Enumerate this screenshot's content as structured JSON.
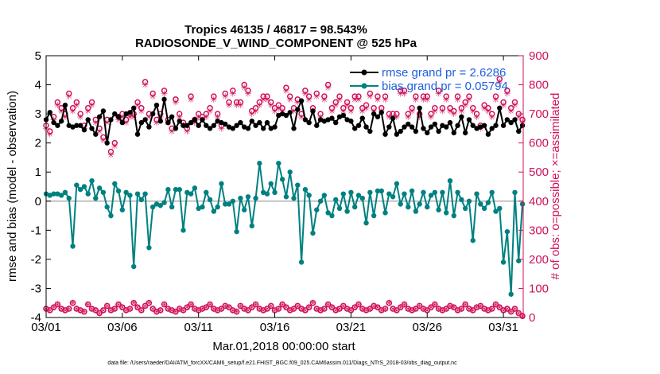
{
  "colors": {
    "rmse": "#000000",
    "bias": "#008080",
    "count": "#d0105a",
    "legend_text": "#1f5fe0",
    "zero": "#b0b0b0",
    "axis": "#000000"
  },
  "footer": "data file: /Users/raeder/DAI/ATM_forcXX/CAM6_setup/f.e21.FHIST_BGC.f09_025.CAM6assim.011/Diags_NTrS_2018-03/obs_diag_output.nc",
  "chart_data": {
    "type": "line",
    "title": "Tropics 46135 / 46817 = 98.543%",
    "subtitle": "RADIOSONDE_V_WIND_COMPONENT @ 525 hPa",
    "xlabel": "Mar.01,2018 00:00:00 start",
    "ylabel": "rmse and bias (model - observation)",
    "y2label": "# of obs: o=possible; ×=assimilated",
    "xlim": [
      0,
      31.3
    ],
    "ylim": [
      -4,
      5
    ],
    "y2lim": [
      0,
      900
    ],
    "x_ticks": [
      0,
      5,
      10,
      15,
      20,
      25,
      30
    ],
    "x_tick_labels": [
      "03/01",
      "03/06",
      "03/11",
      "03/16",
      "03/21",
      "03/26",
      "03/31"
    ],
    "y_ticks": [
      -4,
      -3,
      -2,
      -1,
      0,
      1,
      2,
      3,
      4,
      5
    ],
    "y_tick_labels": [
      "-4",
      "-3",
      "-2",
      "-1",
      "0",
      "1",
      "2",
      "3",
      "4",
      "5"
    ],
    "y2_ticks": [
      0,
      100,
      200,
      300,
      400,
      500,
      600,
      700,
      800,
      900
    ],
    "y2_tick_labels": [
      "0",
      "100",
      "200",
      "300",
      "400",
      "500",
      "600",
      "700",
      "800",
      "900"
    ],
    "legend": [
      "rmse grand pr = 2.6286",
      "bias grand pr = 0.05794"
    ],
    "legend_position": "top-right",
    "x": [
      0.0,
      0.25,
      0.5,
      0.75,
      1.0,
      1.25,
      1.5,
      1.75,
      2.0,
      2.25,
      2.5,
      2.75,
      3.0,
      3.25,
      3.5,
      3.75,
      4.0,
      4.25,
      4.5,
      4.75,
      5.0,
      5.25,
      5.5,
      5.75,
      6.0,
      6.25,
      6.5,
      6.75,
      7.0,
      7.25,
      7.5,
      7.75,
      8.0,
      8.25,
      8.5,
      8.75,
      9.0,
      9.25,
      9.5,
      9.75,
      10.0,
      10.25,
      10.5,
      10.75,
      11.0,
      11.25,
      11.5,
      11.75,
      12.0,
      12.25,
      12.5,
      12.75,
      13.0,
      13.25,
      13.5,
      13.75,
      14.0,
      14.25,
      14.5,
      14.75,
      15.0,
      15.25,
      15.5,
      15.75,
      16.0,
      16.25,
      16.5,
      16.75,
      17.0,
      17.25,
      17.5,
      17.75,
      18.0,
      18.25,
      18.5,
      18.75,
      19.0,
      19.25,
      19.5,
      19.75,
      20.0,
      20.25,
      20.5,
      20.75,
      21.0,
      21.25,
      21.5,
      21.75,
      22.0,
      22.25,
      22.5,
      22.75,
      23.0,
      23.25,
      23.5,
      23.75,
      24.0,
      24.25,
      24.5,
      24.75,
      25.0,
      25.25,
      25.5,
      25.75,
      26.0,
      26.25,
      26.5,
      26.75,
      27.0,
      27.25,
      27.5,
      27.75,
      28.0,
      28.25,
      28.5,
      28.75,
      29.0,
      29.25,
      29.5,
      29.75,
      30.0,
      30.25,
      30.5,
      30.75,
      31.0,
      31.25
    ],
    "series": [
      {
        "name": "rmse",
        "values": [
          2.8,
          3.05,
          2.7,
          2.6,
          2.75,
          3.3,
          2.6,
          2.55,
          2.6,
          2.6,
          2.45,
          2.8,
          2.5,
          2.3,
          2.9,
          3.1,
          2.0,
          2.8,
          3.0,
          2.9,
          2.7,
          3.0,
          3.05,
          3.2,
          2.3,
          2.7,
          2.8,
          2.55,
          3.0,
          3.3,
          2.75,
          3.5,
          2.7,
          2.9,
          2.5,
          2.75,
          2.6,
          2.6,
          2.7,
          2.8,
          2.6,
          2.8,
          2.6,
          2.5,
          2.6,
          2.75,
          2.7,
          2.65,
          2.55,
          2.5,
          2.6,
          2.7,
          2.55,
          2.5,
          2.75,
          2.6,
          2.7,
          2.5,
          2.7,
          2.5,
          2.55,
          2.95,
          3.0,
          2.95,
          3.05,
          2.5,
          3.15,
          3.45,
          2.8,
          2.7,
          3.1,
          2.6,
          2.8,
          2.75,
          2.8,
          2.85,
          2.7,
          2.9,
          2.95,
          2.8,
          2.75,
          2.5,
          2.6,
          2.85,
          2.55,
          2.4,
          3.0,
          2.9,
          3.05,
          2.3,
          2.55,
          2.85,
          2.3,
          2.4,
          2.55,
          2.65,
          2.55,
          2.4,
          3.2,
          2.5,
          2.35,
          2.55,
          2.65,
          2.4,
          2.6,
          2.55,
          2.7,
          2.35,
          2.6,
          2.9,
          2.35,
          2.8,
          2.6,
          2.5,
          2.55,
          2.6,
          2.3,
          2.5,
          2.6,
          3.2,
          2.6,
          2.8,
          2.7,
          2.8,
          2.4,
          2.6
        ]
      },
      {
        "name": "bias",
        "values": [
          0.25,
          0.2,
          0.25,
          0.25,
          0.2,
          0.3,
          0.1,
          -1.55,
          0.55,
          0.4,
          0.5,
          0.25,
          0.7,
          0.1,
          0.45,
          0.3,
          -0.2,
          -0.5,
          0.6,
          0.35,
          -0.3,
          0.3,
          0.2,
          -2.25,
          0.25,
          0.05,
          0.25,
          -1.6,
          -0.2,
          -0.1,
          -0.15,
          -0.05,
          0.4,
          -0.2,
          0.4,
          0.4,
          -1.0,
          0.3,
          0.25,
          0.45,
          -0.25,
          -0.2,
          0.3,
          0.05,
          -0.35,
          -0.2,
          0.6,
          -0.1,
          -0.1,
          0.0,
          -1.05,
          0.1,
          -0.3,
          0.15,
          -0.85,
          0.1,
          1.3,
          0.3,
          0.25,
          0.6,
          0.3,
          1.3,
          0.75,
          0.15,
          1.0,
          0.1,
          0.55,
          -2.1,
          0.4,
          0.2,
          -1.1,
          -0.3,
          0.0,
          0.2,
          -0.4,
          -0.5,
          0.05,
          -0.25,
          0.25,
          -0.35,
          0.3,
          -0.2,
          0.2,
          0.1,
          -0.75,
          0.3,
          -0.5,
          0.35,
          0.35,
          -0.4,
          0.25,
          0.15,
          0.6,
          -0.1,
          0.25,
          -0.2,
          0.35,
          -0.35,
          -0.1,
          0.3,
          -0.2,
          0.2,
          0.3,
          -0.3,
          0.3,
          -0.4,
          0.7,
          -0.5,
          0.3,
          0.05,
          -0.25,
          0.0,
          -1.35,
          0.25,
          -0.1,
          -0.25,
          -0.05,
          0.3,
          -0.35,
          -0.25,
          -2.1,
          -1.05,
          -3.2,
          0.3,
          -2.05,
          -0.1
        ]
      },
      {
        "name": "obs_possible",
        "values": [
          660,
          640,
          690,
          740,
          720,
          700,
          770,
          720,
          740,
          700,
          660,
          720,
          740,
          680,
          650,
          620,
          680,
          570,
          600,
          690,
          700,
          680,
          700,
          700,
          740,
          720,
          810,
          700,
          770,
          680,
          700,
          780,
          680,
          650,
          750,
          700,
          670,
          650,
          760,
          680,
          700,
          690,
          700,
          720,
          760,
          700,
          660,
          770,
          740,
          780,
          740,
          740,
          800,
          780,
          710,
          720,
          740,
          760,
          760,
          740,
          720,
          730,
          720,
          790,
          760,
          720,
          750,
          700,
          780,
          760,
          720,
          770,
          700,
          760,
          800,
          720,
          740,
          760,
          720,
          740,
          720,
          760,
          760,
          720,
          730,
          770,
          720,
          760,
          720,
          760,
          700,
          700,
          700,
          780,
          780,
          700,
          720,
          760,
          700,
          760,
          760,
          700,
          720,
          780,
          720,
          760,
          720,
          710,
          760,
          720,
          740,
          760,
          720,
          700,
          660,
          730,
          720,
          700,
          760,
          820,
          740,
          780,
          720,
          740,
          700,
          680
        ]
      },
      {
        "name": "obs_assimilated",
        "values": [
          650,
          630,
          680,
          730,
          710,
          690,
          760,
          710,
          730,
          690,
          650,
          710,
          730,
          670,
          640,
          610,
          670,
          560,
          590,
          680,
          690,
          670,
          690,
          690,
          730,
          710,
          800,
          690,
          760,
          670,
          690,
          770,
          670,
          640,
          740,
          690,
          660,
          640,
          750,
          670,
          690,
          680,
          690,
          710,
          750,
          690,
          650,
          760,
          730,
          770,
          730,
          730,
          790,
          770,
          700,
          710,
          730,
          750,
          750,
          730,
          710,
          720,
          710,
          780,
          750,
          710,
          740,
          690,
          770,
          750,
          710,
          760,
          690,
          750,
          790,
          710,
          730,
          750,
          710,
          730,
          710,
          750,
          750,
          710,
          720,
          760,
          710,
          750,
          710,
          750,
          690,
          690,
          690,
          770,
          770,
          690,
          710,
          750,
          690,
          750,
          750,
          690,
          710,
          770,
          710,
          750,
          710,
          700,
          750,
          710,
          730,
          750,
          710,
          690,
          650,
          720,
          710,
          690,
          750,
          810,
          730,
          770,
          710,
          730,
          690,
          670
        ]
      },
      {
        "name": "obs_low",
        "values": [
          30,
          25,
          35,
          45,
          30,
          25,
          30,
          50,
          30,
          25,
          20,
          45,
          30,
          25,
          15,
          25,
          40,
          25,
          30,
          45,
          35,
          25,
          30,
          50,
          35,
          25,
          40,
          50,
          30,
          20,
          25,
          45,
          30,
          25,
          20,
          30,
          25,
          35,
          45,
          30,
          25,
          30,
          35,
          45,
          30,
          25,
          30,
          40,
          35,
          25,
          20,
          40,
          30,
          25,
          35,
          45,
          30,
          25,
          30,
          40,
          25,
          30,
          45,
          35,
          25,
          30,
          40,
          30,
          25,
          35,
          50,
          30,
          25,
          30,
          45,
          35,
          25,
          30,
          40,
          30,
          25,
          35,
          45,
          30,
          25,
          30,
          40,
          35,
          25,
          30,
          50,
          30,
          25,
          35,
          45,
          30,
          25,
          30,
          40,
          30,
          25,
          35,
          45,
          30,
          25,
          30,
          40,
          35,
          25,
          30,
          45,
          30,
          25,
          35,
          40,
          30,
          25,
          30,
          45,
          35,
          25,
          30,
          20,
          30,
          15,
          5
        ]
      }
    ]
  }
}
